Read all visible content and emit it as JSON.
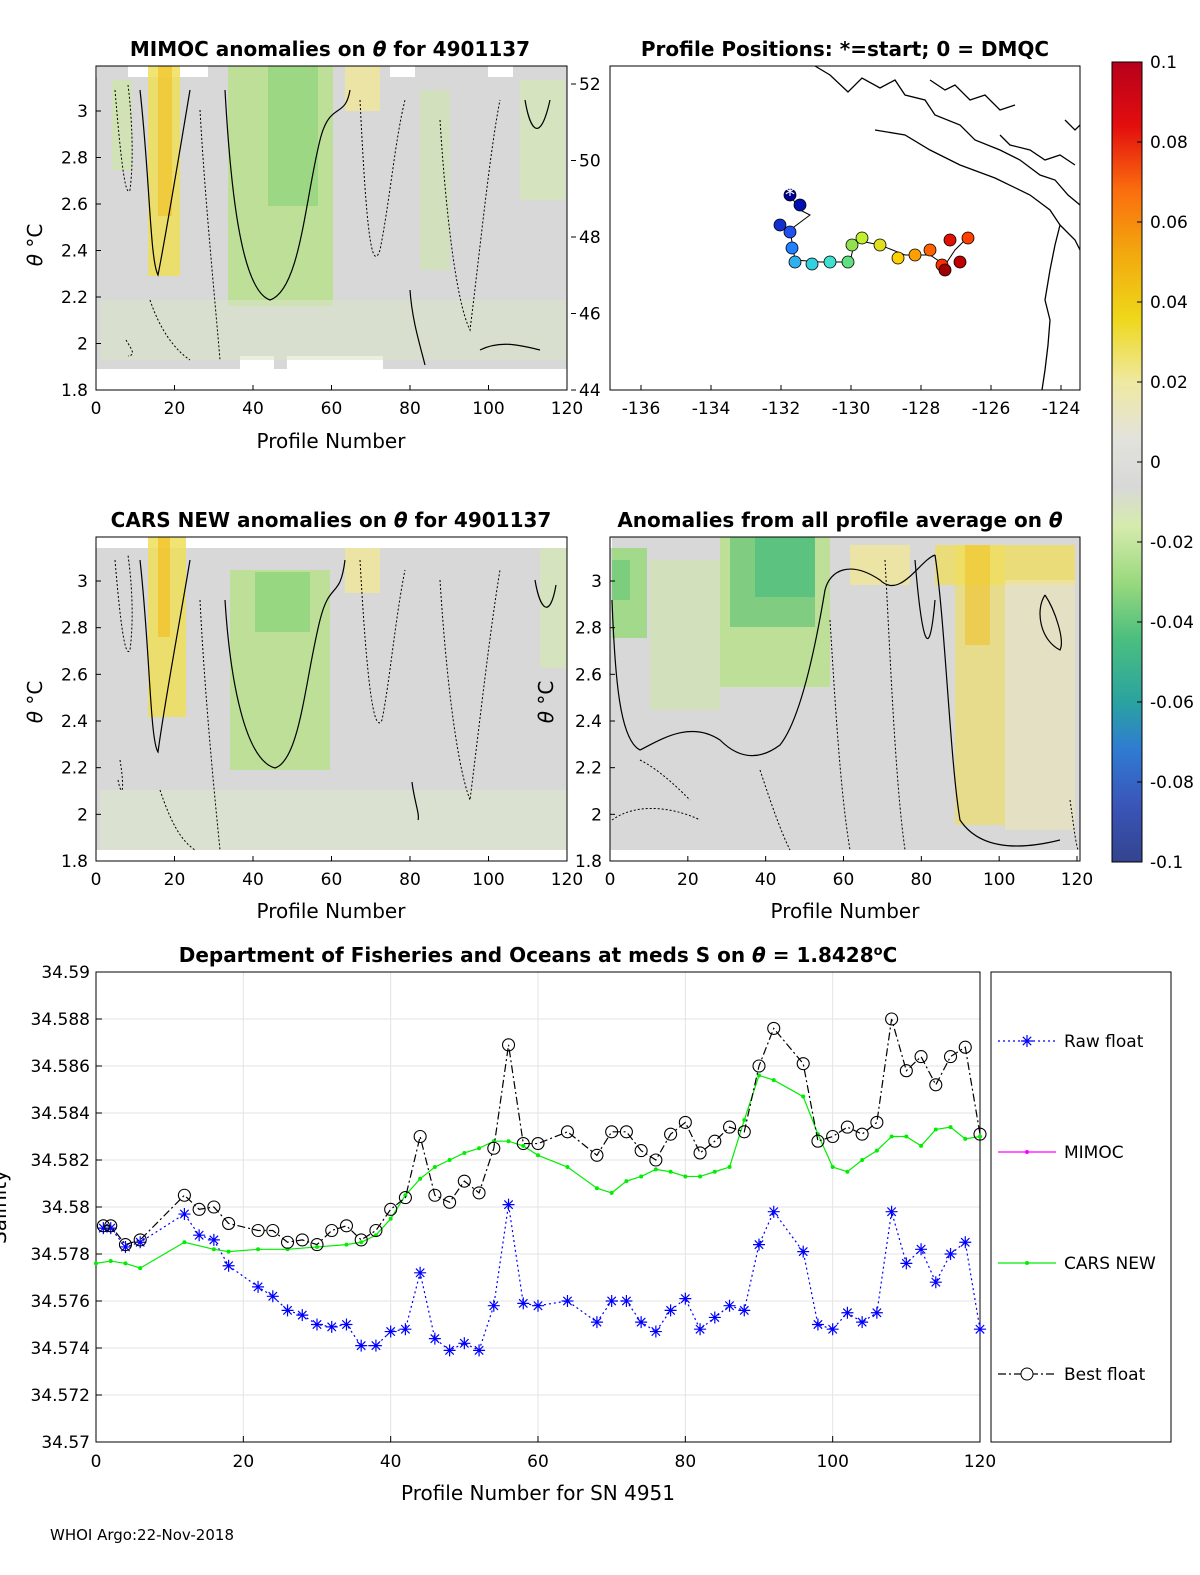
{
  "footer": "WHOI Argo:22-Nov-2018",
  "panels": {
    "mimoc": {
      "title_pre": "MIMOC anomalies on ",
      "title_post": "  for 4901137",
      "theta": "θ",
      "xlabel": "Profile Number",
      "ylabel_theta": "θ",
      "ylabel_unit": "°C",
      "xticks": [
        "0",
        "20",
        "40",
        "60",
        "80",
        "100",
        "120"
      ],
      "yticks": [
        "1.8",
        "2",
        "2.2",
        "2.4",
        "2.6",
        "2.8",
        "3"
      ]
    },
    "map": {
      "title": "Profile Positions: *=start; 0 = DMQC",
      "xticks": [
        "-136",
        "-134",
        "-132",
        "-130",
        "-128",
        "-126",
        "-124"
      ],
      "yticks": [
        "44",
        "46",
        "48",
        "50",
        "52"
      ]
    },
    "cars": {
      "title_pre": "CARS NEW anomalies on ",
      "title_post": " for 4901137",
      "theta": "θ",
      "xlabel": "Profile Number",
      "ylabel_theta": "θ",
      "ylabel_unit": "°C",
      "xticks": [
        "0",
        "20",
        "40",
        "60",
        "80",
        "100",
        "120"
      ],
      "yticks": [
        "1.8",
        "2",
        "2.2",
        "2.4",
        "2.6",
        "2.8",
        "3"
      ]
    },
    "avg": {
      "title_pre": "Anomalies from all profile average on ",
      "theta": "θ",
      "xlabel": "Profile Number",
      "ylabel_theta": "θ",
      "ylabel_unit": "°C",
      "xticks": [
        "0",
        "20",
        "40",
        "60",
        "80",
        "100",
        "120"
      ],
      "yticks": [
        "1.8",
        "2",
        "2.2",
        "2.4",
        "2.6",
        "2.8",
        "3"
      ]
    },
    "colorbar": {
      "ticks": [
        "0.1",
        "0.08",
        "0.06",
        "0.04",
        "0.02",
        "0",
        "-0.02",
        "-0.04",
        "-0.06",
        "-0.08",
        "-0.1"
      ]
    }
  },
  "chart_data": {
    "type": "line",
    "title_pre": "Department of Fisheries and Oceans at meds S on ",
    "title_theta": "θ",
    "title_post": " = 1.8428",
    "title_deg": "o",
    "title_unit": "C",
    "xlabel": "Profile Number for SN 4951",
    "ylabel": "Salinity",
    "xlim": [
      0,
      120
    ],
    "ylim": [
      34.57,
      34.59
    ],
    "xticks": [
      "0",
      "20",
      "40",
      "60",
      "80",
      "100",
      "120"
    ],
    "yticks": [
      "34.57",
      "34.572",
      "34.574",
      "34.576",
      "34.578",
      "34.58",
      "34.582",
      "34.584",
      "34.586",
      "34.588",
      "34.59"
    ],
    "grid": true,
    "legend": [
      "Raw float",
      "MIMOC",
      "CARS NEW",
      "Best float"
    ],
    "series": [
      {
        "name": "Raw float",
        "color": "#0000ff",
        "x": [
          1,
          2,
          4,
          6,
          12,
          14,
          16,
          18,
          22,
          24,
          26,
          28,
          30,
          32,
          34,
          36,
          38,
          40,
          42,
          44,
          46,
          48,
          50,
          52,
          54,
          56,
          58,
          60,
          64,
          68,
          70,
          72,
          74,
          76,
          78,
          80,
          82,
          84,
          86,
          88,
          90,
          92,
          96,
          98,
          100,
          102,
          104,
          106,
          108,
          110,
          112,
          114,
          116,
          118,
          120
        ],
        "y": [
          34.5791,
          34.5791,
          34.5783,
          34.5785,
          34.5797,
          34.5788,
          34.5786,
          34.5775,
          34.5766,
          34.5762,
          34.5756,
          34.5754,
          34.575,
          34.5749,
          34.575,
          34.5741,
          34.5741,
          34.5747,
          34.5748,
          34.5772,
          34.5744,
          34.5739,
          34.5742,
          34.5739,
          34.5758,
          34.5801,
          34.5759,
          34.5758,
          34.576,
          34.5751,
          34.576,
          34.576,
          34.5751,
          34.5747,
          34.5756,
          34.5761,
          34.5748,
          34.5753,
          34.5758,
          34.5756,
          34.5784,
          34.5798,
          34.5781,
          34.575,
          34.5748,
          34.5755,
          34.5751,
          34.5755,
          34.5798,
          34.5776,
          34.5782,
          34.5768,
          34.578,
          34.5785,
          34.5748
        ]
      },
      {
        "name": "CARS NEW",
        "color": "#00ee00",
        "x": [
          0,
          2,
          4,
          6,
          12,
          16,
          18,
          22,
          26,
          30,
          34,
          36,
          38,
          40,
          42,
          44,
          46,
          48,
          50,
          52,
          54,
          56,
          58,
          60,
          64,
          68,
          70,
          72,
          74,
          76,
          78,
          80,
          82,
          84,
          86,
          88,
          90,
          92,
          96,
          98,
          100,
          102,
          104,
          106,
          108,
          110,
          112,
          114,
          116,
          118,
          120
        ],
        "y": [
          34.5776,
          34.5777,
          34.5776,
          34.5774,
          34.5785,
          34.5782,
          34.5781,
          34.5782,
          34.5782,
          34.5783,
          34.5784,
          34.5785,
          34.5788,
          34.5795,
          34.5805,
          34.5812,
          34.5817,
          34.582,
          34.5823,
          34.5825,
          34.5828,
          34.5828,
          34.5826,
          34.5822,
          34.5817,
          34.5808,
          34.5806,
          34.5811,
          34.5813,
          34.5816,
          34.5815,
          34.5813,
          34.5813,
          34.5815,
          34.5817,
          34.5837,
          34.5856,
          34.5854,
          34.5847,
          34.5831,
          34.5817,
          34.5815,
          34.582,
          34.5824,
          34.583,
          34.583,
          34.5826,
          34.5833,
          34.5834,
          34.5829,
          34.583
        ]
      },
      {
        "name": "Best float",
        "color": "#000000",
        "x": [
          1,
          2,
          4,
          6,
          12,
          14,
          16,
          18,
          22,
          24,
          26,
          28,
          30,
          32,
          34,
          36,
          38,
          40,
          42,
          44,
          46,
          48,
          50,
          52,
          54,
          56,
          58,
          60,
          64,
          68,
          70,
          72,
          74,
          76,
          78,
          80,
          82,
          84,
          86,
          88,
          90,
          92,
          96,
          98,
          100,
          102,
          104,
          106,
          108,
          110,
          112,
          114,
          116,
          118,
          120
        ],
        "y": [
          34.5792,
          34.5792,
          34.5784,
          34.5786,
          34.5805,
          34.5799,
          34.58,
          34.5793,
          34.579,
          34.579,
          34.5785,
          34.5786,
          34.5784,
          34.579,
          34.5792,
          34.5786,
          34.579,
          34.5799,
          34.5804,
          34.583,
          34.5805,
          34.5802,
          34.5811,
          34.5806,
          34.5825,
          34.5869,
          34.5827,
          34.5827,
          34.5832,
          34.5822,
          34.5832,
          34.5832,
          34.5824,
          34.582,
          34.5831,
          34.5836,
          34.5823,
          34.5828,
          34.5834,
          34.5832,
          34.586,
          34.5876,
          34.5861,
          34.5828,
          34.583,
          34.5834,
          34.5831,
          34.5836,
          34.588,
          34.5858,
          34.5864,
          34.5852,
          34.5864,
          34.5868,
          34.5831
        ]
      }
    ]
  }
}
